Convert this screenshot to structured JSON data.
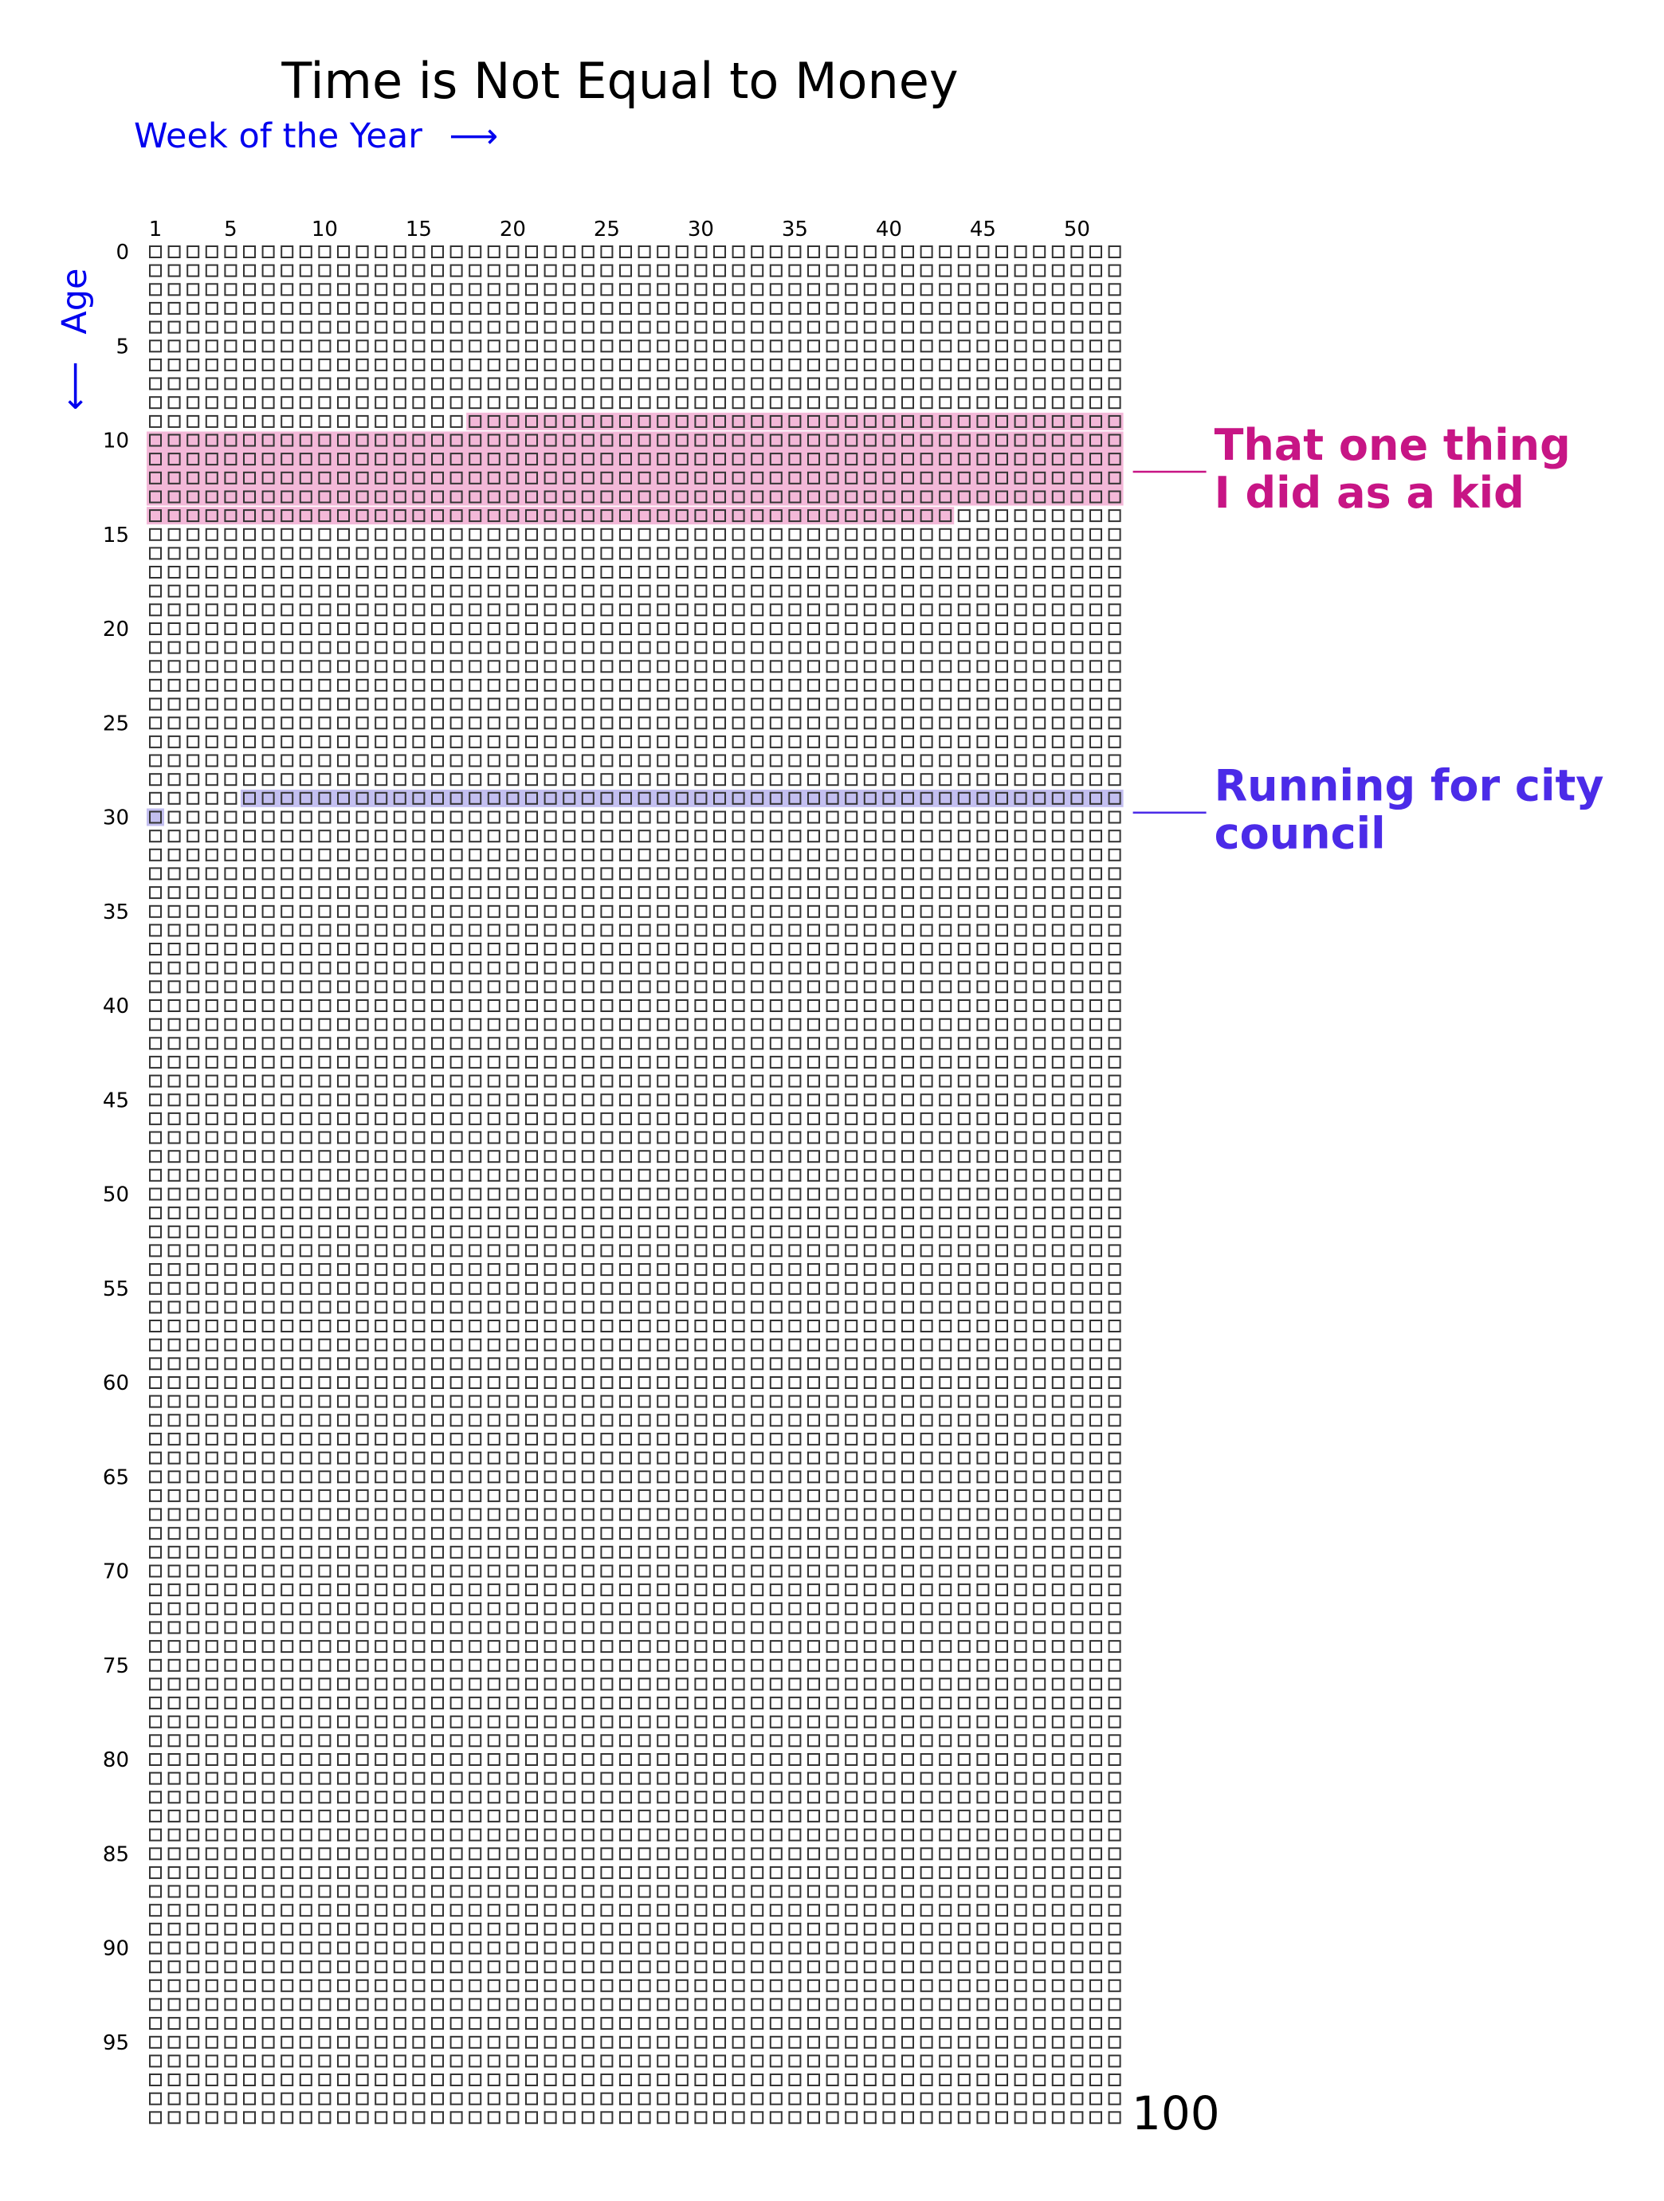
{
  "chart_data": {
    "type": "heatmap",
    "title": "Time is Not Equal to Money",
    "xlabel": "Week of the Year",
    "ylabel": "Age",
    "x_arrow": "⟶",
    "y_arrow": "⟵",
    "weeks_per_year": 52,
    "years": 100,
    "x_ticks": [
      1,
      5,
      10,
      15,
      20,
      25,
      30,
      35,
      40,
      45,
      50
    ],
    "y_ticks": [
      0,
      5,
      10,
      15,
      20,
      25,
      30,
      35,
      40,
      45,
      50,
      55,
      60,
      65,
      70,
      75,
      80,
      85,
      90,
      95
    ],
    "end_label": "100",
    "grid_color": "#333333",
    "periods": [
      {
        "label_lines": [
          "That one thing",
          "I did as a kid"
        ],
        "start": {
          "age": 9,
          "week": 18
        },
        "end": {
          "age": 14,
          "week": 43
        },
        "fill_color": "#f3b8d8",
        "text_color": "#c71585"
      },
      {
        "label_lines": [
          "Running for city",
          "council"
        ],
        "start": {
          "age": 29,
          "week": 6
        },
        "end": {
          "age": 30,
          "week": 1
        },
        "fill_color": "#c3bff0",
        "text_color": "#4b2be8"
      }
    ]
  }
}
